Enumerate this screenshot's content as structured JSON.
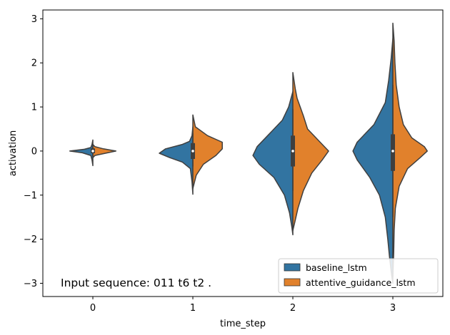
{
  "chart_data": {
    "type": "violin-split",
    "xlabel": "time_step",
    "ylabel": "activation",
    "categories": [
      "0",
      "1",
      "2",
      "3"
    ],
    "ylim": [
      -3.3,
      3.2
    ],
    "yticks": [
      -3,
      -2,
      -1,
      0,
      1,
      2,
      3
    ],
    "ytick_labels": [
      "−3",
      "−2",
      "−1",
      "0",
      "1",
      "2",
      "3"
    ],
    "annotation": "Input sequence: 011 t6 t2 .",
    "legend_position": "lower-right",
    "series": [
      {
        "name": "baseline_lstm",
        "color": "#3274a1",
        "side": "left",
        "violins": [
          {
            "category": "0",
            "profile": [
              [
                0.25,
                0
              ],
              [
                0.15,
                0.02
              ],
              [
                0.08,
                0.05
              ],
              [
                0.04,
                0.2
              ],
              [
                0,
                0.55
              ],
              [
                -0.04,
                0.25
              ],
              [
                -0.1,
                0.05
              ],
              [
                -0.2,
                0.02
              ],
              [
                -0.33,
                0
              ]
            ]
          },
          {
            "category": "1",
            "profile": [
              [
                0.55,
                0
              ],
              [
                0.35,
                0.02
              ],
              [
                0.22,
                0.08
              ],
              [
                0.15,
                0.25
              ],
              [
                0.05,
                0.65
              ],
              [
                -0.05,
                0.8
              ],
              [
                -0.15,
                0.55
              ],
              [
                -0.25,
                0.25
              ],
              [
                -0.4,
                0.06
              ],
              [
                -0.7,
                0.02
              ],
              [
                -0.98,
                0
              ]
            ]
          },
          {
            "category": "2",
            "profile": [
              [
                1.35,
                0
              ],
              [
                1.0,
                0.1
              ],
              [
                0.7,
                0.25
              ],
              [
                0.4,
                0.55
              ],
              [
                0.1,
                0.85
              ],
              [
                -0.1,
                0.95
              ],
              [
                -0.3,
                0.8
              ],
              [
                -0.6,
                0.45
              ],
              [
                -1.0,
                0.2
              ],
              [
                -1.4,
                0.08
              ],
              [
                -1.75,
                0.02
              ],
              [
                -1.9,
                0
              ]
            ]
          },
          {
            "category": "3",
            "profile": [
              [
                2.55,
                0
              ],
              [
                2.1,
                0.04
              ],
              [
                1.6,
                0.1
              ],
              [
                1.1,
                0.18
              ],
              [
                0.6,
                0.45
              ],
              [
                0.2,
                0.85
              ],
              [
                0.0,
                0.95
              ],
              [
                -0.2,
                0.85
              ],
              [
                -0.6,
                0.55
              ],
              [
                -1.0,
                0.32
              ],
              [
                -1.5,
                0.18
              ],
              [
                -2.0,
                0.12
              ],
              [
                -2.4,
                0.08
              ],
              [
                -2.8,
                0.03
              ],
              [
                -3.0,
                0
              ]
            ]
          }
        ]
      },
      {
        "name": "attentive_guidance_lstm",
        "color": "#e1812c",
        "side": "right",
        "violins": [
          {
            "category": "0",
            "profile": [
              [
                0.15,
                0
              ],
              [
                0.1,
                0.05
              ],
              [
                0.05,
                0.25
              ],
              [
                0,
                0.55
              ],
              [
                -0.05,
                0.3
              ],
              [
                -0.1,
                0.05
              ],
              [
                -0.15,
                0
              ]
            ]
          },
          {
            "category": "1",
            "profile": [
              [
                0.82,
                0
              ],
              [
                0.55,
                0.06
              ],
              [
                0.35,
                0.35
              ],
              [
                0.2,
                0.7
              ],
              [
                0.05,
                0.7
              ],
              [
                -0.1,
                0.55
              ],
              [
                -0.3,
                0.25
              ],
              [
                -0.55,
                0.08
              ],
              [
                -0.85,
                0
              ]
            ]
          },
          {
            "category": "2",
            "profile": [
              [
                1.78,
                0
              ],
              [
                1.4,
                0.06
              ],
              [
                1.2,
                0.1
              ],
              [
                0.8,
                0.25
              ],
              [
                0.5,
                0.35
              ],
              [
                0.2,
                0.65
              ],
              [
                0.0,
                0.85
              ],
              [
                -0.2,
                0.7
              ],
              [
                -0.5,
                0.45
              ],
              [
                -0.9,
                0.25
              ],
              [
                -1.3,
                0.12
              ],
              [
                -1.6,
                0.05
              ],
              [
                -1.8,
                0
              ]
            ]
          },
          {
            "category": "3",
            "profile": [
              [
                2.9,
                0
              ],
              [
                2.5,
                0.03
              ],
              [
                2.0,
                0.05
              ],
              [
                1.5,
                0.08
              ],
              [
                1.0,
                0.15
              ],
              [
                0.6,
                0.25
              ],
              [
                0.3,
                0.45
              ],
              [
                0.1,
                0.75
              ],
              [
                0.0,
                0.82
              ],
              [
                -0.15,
                0.65
              ],
              [
                -0.4,
                0.35
              ],
              [
                -0.8,
                0.15
              ],
              [
                -1.3,
                0.06
              ],
              [
                -1.8,
                0.03
              ],
              [
                -2.3,
                0.02
              ],
              [
                -2.85,
                0
              ]
            ]
          }
        ]
      }
    ],
    "inner_box": [
      {
        "category": "0",
        "q1": -0.05,
        "q3": 0.06,
        "median": 0.0,
        "whisker_low": -0.12,
        "whisker_high": 0.12
      },
      {
        "category": "1",
        "q1": -0.18,
        "q3": 0.18,
        "median": 0.0,
        "whisker_low": -0.35,
        "whisker_high": 0.4
      },
      {
        "category": "2",
        "q1": -0.35,
        "q3": 0.35,
        "median": 0.0,
        "whisker_low": -0.9,
        "whisker_high": 0.95
      },
      {
        "category": "3",
        "q1": -0.45,
        "q3": 0.38,
        "median": 0.0,
        "whisker_low": -1.5,
        "whisker_high": 1.5
      }
    ]
  }
}
